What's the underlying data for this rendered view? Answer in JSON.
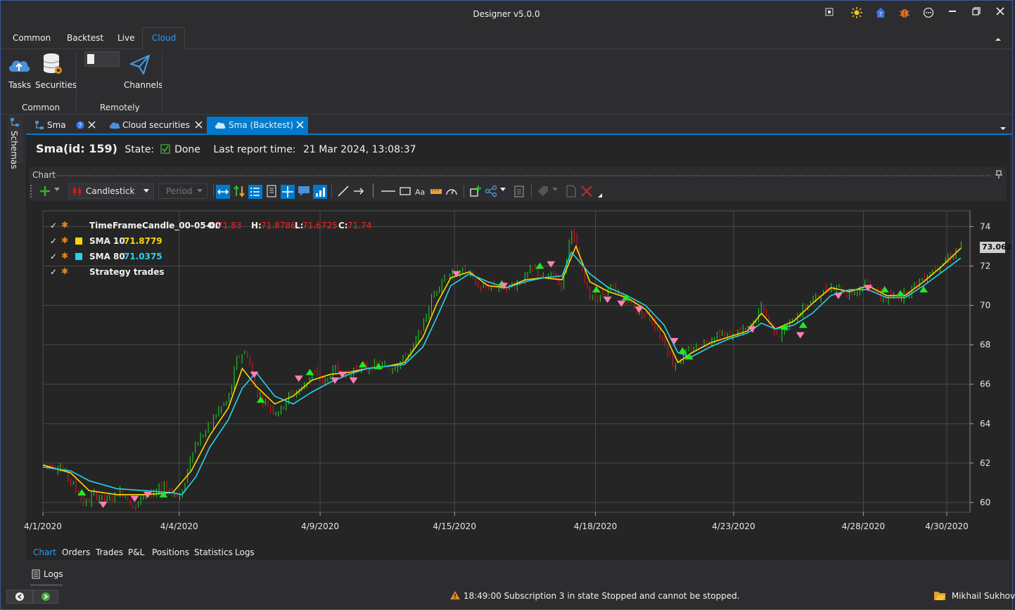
{
  "app": {
    "title": "Designer v5.0.0"
  },
  "colors": {
    "accent": "#007acc",
    "up": "#16e016",
    "down": "#e01616",
    "sma10": "#ffd700",
    "sma80": "#26d4e8",
    "buy": "#22e822",
    "sell": "#ff7fb8",
    "red_text": "#ff2020"
  },
  "ribbon": {
    "tabs": [
      "Common",
      "Backtest",
      "Live",
      "Cloud"
    ],
    "active_tab": "Cloud",
    "buttons": {
      "tasks": "Tasks",
      "securities": "Securities",
      "channels": "Channels"
    },
    "groups": {
      "common": "Common",
      "remotely": "Remotely"
    }
  },
  "sidebar": {
    "schemas": "Schemas"
  },
  "doc_tabs": {
    "sma": "Sma",
    "cloud_securities": "Cloud securities",
    "sma_backtest": "Sma (Backtest)"
  },
  "header": {
    "name": "Sma(id: 159)",
    "state_label": "State:",
    "state_value": "Done",
    "report_label": "Last report time:",
    "report_value": "21 Mar 2024, 13:08:37"
  },
  "chart_panel": {
    "title": "Chart",
    "candle_type": "Candlestick",
    "period_placeholder": "Period"
  },
  "legend": {
    "candle": {
      "name": "TimeFrameCandle_00-05-00",
      "o_label": "O:",
      "o": "71.83",
      "h_label": "H:",
      "h": "71.8786",
      "l_label": "L:",
      "l": "71.6725",
      "c_label": "C:",
      "c": "71.74"
    },
    "sma10": {
      "name": "SMA 10",
      "value": "71.8779"
    },
    "sma80": {
      "name": "SMA 80",
      "value": "71.0375"
    },
    "trades": {
      "name": "Strategy trades"
    }
  },
  "last_price_badge": "73.062",
  "bottom_tabs": [
    "Chart",
    "Orders",
    "Trades",
    "P&L",
    "Positions",
    "Statistics",
    "Logs"
  ],
  "logs_panel": {
    "label": "Logs"
  },
  "status": {
    "message": "18:49:00  Subscription 3 in state Stopped and cannot be stopped.",
    "user": "Mikhail Sukhov"
  },
  "chart_data": {
    "type": "line",
    "xlabel": "",
    "ylabel": "",
    "ylim": [
      59.5,
      74.8
    ],
    "yticks": [
      60,
      62,
      64,
      66,
      68,
      70,
      72,
      74
    ],
    "x_ticks": [
      "4/1/2020",
      "4/4/2020",
      "4/9/2020",
      "4/15/2020",
      "4/18/2020",
      "4/23/2020",
      "4/28/2020",
      "4/30/2020"
    ],
    "xlim": [
      0,
      100
    ],
    "x_tick_pos": [
      0,
      14.7,
      29.9,
      44.4,
      59.6,
      74.5,
      88.5,
      97.5
    ],
    "price": [
      [
        0,
        61.9
      ],
      [
        2,
        61.8
      ],
      [
        3.5,
        60.7
      ],
      [
        4.5,
        59.9
      ],
      [
        5.5,
        60.4
      ],
      [
        7,
        60.1
      ],
      [
        8.5,
        60.6
      ],
      [
        10,
        59.7
      ],
      [
        11,
        60.6
      ],
      [
        12,
        60.3
      ],
      [
        13,
        61.0
      ],
      [
        14,
        60.4
      ],
      [
        15,
        60.3
      ],
      [
        16,
        62.6
      ],
      [
        17.5,
        63.6
      ],
      [
        19,
        64.7
      ],
      [
        20,
        65.2
      ],
      [
        21,
        67.4
      ],
      [
        22,
        67.6
      ],
      [
        23,
        65.6
      ],
      [
        24.5,
        64.8
      ],
      [
        25.5,
        64.6
      ],
      [
        26.5,
        65.4
      ],
      [
        28,
        65.8
      ],
      [
        29,
        66.6
      ],
      [
        30.5,
        66.1
      ],
      [
        31.5,
        66.8
      ],
      [
        33,
        66.4
      ],
      [
        34,
        66.9
      ],
      [
        35,
        66.8
      ],
      [
        36,
        67.0
      ],
      [
        37.5,
        66.8
      ],
      [
        39,
        67.3
      ],
      [
        40,
        67.9
      ],
      [
        41,
        69.0
      ],
      [
        42,
        70.4
      ],
      [
        43,
        71.3
      ],
      [
        44,
        71.6
      ],
      [
        45,
        71.8
      ],
      [
        46,
        71.6
      ],
      [
        47,
        70.9
      ],
      [
        48.5,
        71.0
      ],
      [
        50,
        70.9
      ],
      [
        51.5,
        71.2
      ],
      [
        53,
        71.9
      ],
      [
        54,
        71.3
      ],
      [
        55,
        71.6
      ],
      [
        56,
        71.0
      ],
      [
        57,
        74.0
      ],
      [
        58,
        71.8
      ],
      [
        59,
        70.5
      ],
      [
        60,
        70.3
      ],
      [
        61,
        70.9
      ],
      [
        62,
        70.6
      ],
      [
        63,
        70.3
      ],
      [
        64,
        69.8
      ],
      [
        65.5,
        69.4
      ],
      [
        67,
        68.2
      ],
      [
        68,
        67.0
      ],
      [
        69,
        67.4
      ],
      [
        70.5,
        67.9
      ],
      [
        72,
        68.3
      ],
      [
        73,
        68.6
      ],
      [
        74,
        68.4
      ],
      [
        75.5,
        68.7
      ],
      [
        76.5,
        68.9
      ],
      [
        77.5,
        70.0
      ],
      [
        78.5,
        69.0
      ],
      [
        79.5,
        68.5
      ],
      [
        81,
        69.3
      ],
      [
        82.5,
        70.1
      ],
      [
        84,
        70.6
      ],
      [
        85.5,
        71.1
      ],
      [
        86.5,
        70.6
      ],
      [
        88,
        70.8
      ],
      [
        89,
        71.2
      ],
      [
        90.5,
        70.3
      ],
      [
        92,
        70.4
      ],
      [
        93,
        70.6
      ],
      [
        95,
        71.4
      ],
      [
        96.5,
        72.0
      ],
      [
        98,
        72.5
      ],
      [
        99,
        73.0
      ]
    ],
    "sma10": [
      [
        0,
        61.9
      ],
      [
        3,
        61.5
      ],
      [
        5,
        60.6
      ],
      [
        8,
        60.4
      ],
      [
        11,
        60.4
      ],
      [
        14,
        60.5
      ],
      [
        16,
        61.6
      ],
      [
        18,
        63.4
      ],
      [
        20,
        64.8
      ],
      [
        21.5,
        66.8
      ],
      [
        23,
        65.9
      ],
      [
        25,
        65.0
      ],
      [
        27,
        65.4
      ],
      [
        29,
        66.2
      ],
      [
        31,
        66.5
      ],
      [
        33,
        66.6
      ],
      [
        35,
        66.8
      ],
      [
        37,
        66.9
      ],
      [
        39,
        67.1
      ],
      [
        41,
        68.4
      ],
      [
        42.5,
        70.1
      ],
      [
        44,
        71.4
      ],
      [
        46,
        71.7
      ],
      [
        48,
        71.0
      ],
      [
        50,
        70.9
      ],
      [
        52,
        71.3
      ],
      [
        54,
        71.4
      ],
      [
        56,
        71.3
      ],
      [
        57.5,
        73.0
      ],
      [
        59,
        71.2
      ],
      [
        61,
        70.7
      ],
      [
        63,
        70.4
      ],
      [
        65,
        69.8
      ],
      [
        67,
        68.6
      ],
      [
        68.5,
        67.1
      ],
      [
        70,
        67.6
      ],
      [
        72,
        68.1
      ],
      [
        74,
        68.4
      ],
      [
        76,
        68.7
      ],
      [
        77.5,
        69.6
      ],
      [
        79,
        68.8
      ],
      [
        81,
        69.2
      ],
      [
        83,
        70.1
      ],
      [
        85,
        70.9
      ],
      [
        87,
        70.7
      ],
      [
        89,
        71.0
      ],
      [
        91,
        70.5
      ],
      [
        93,
        70.5
      ],
      [
        95,
        71.2
      ],
      [
        97,
        72.0
      ],
      [
        99,
        72.9
      ]
    ],
    "sma80": [
      [
        0,
        61.8
      ],
      [
        3,
        61.6
      ],
      [
        5,
        61.1
      ],
      [
        8,
        60.7
      ],
      [
        11,
        60.6
      ],
      [
        14,
        60.5
      ],
      [
        15,
        60.4
      ],
      [
        16.5,
        61.3
      ],
      [
        18,
        62.8
      ],
      [
        20,
        64.2
      ],
      [
        21.5,
        65.8
      ],
      [
        23,
        66.6
      ],
      [
        25,
        65.4
      ],
      [
        27,
        65.0
      ],
      [
        29,
        65.6
      ],
      [
        31,
        66.1
      ],
      [
        33,
        66.5
      ],
      [
        35,
        66.8
      ],
      [
        37,
        66.9
      ],
      [
        39,
        67.0
      ],
      [
        41,
        67.9
      ],
      [
        42.5,
        69.4
      ],
      [
        44,
        71.0
      ],
      [
        46,
        71.6
      ],
      [
        48,
        71.2
      ],
      [
        50,
        70.9
      ],
      [
        52,
        71.2
      ],
      [
        54,
        71.4
      ],
      [
        56,
        71.5
      ],
      [
        57,
        72.7
      ],
      [
        59,
        71.6
      ],
      [
        61,
        70.9
      ],
      [
        63,
        70.5
      ],
      [
        65,
        70.0
      ],
      [
        67,
        69.0
      ],
      [
        68.5,
        67.6
      ],
      [
        70,
        67.4
      ],
      [
        72,
        67.9
      ],
      [
        74,
        68.3
      ],
      [
        76,
        68.6
      ],
      [
        77.5,
        69.1
      ],
      [
        79,
        68.8
      ],
      [
        81,
        69.0
      ],
      [
        83,
        69.6
      ],
      [
        85,
        70.5
      ],
      [
        87,
        70.8
      ],
      [
        89,
        70.8
      ],
      [
        91,
        70.4
      ],
      [
        93,
        70.4
      ],
      [
        95,
        71.0
      ],
      [
        97,
        71.7
      ],
      [
        99,
        72.4
      ]
    ],
    "buys": [
      [
        4.2,
        60.5
      ],
      [
        13,
        60.4
      ],
      [
        23.5,
        65.2
      ],
      [
        28.8,
        66.6
      ],
      [
        34.5,
        67.0
      ],
      [
        36.2,
        66.9
      ],
      [
        49.5,
        71.1
      ],
      [
        53.6,
        72.0
      ],
      [
        59.7,
        70.8
      ],
      [
        62.9,
        70.4
      ],
      [
        69,
        67.7
      ],
      [
        69.7,
        67.4
      ],
      [
        80,
        68.9
      ],
      [
        82,
        69.0
      ],
      [
        90.8,
        70.8
      ],
      [
        92.5,
        70.6
      ],
      [
        95,
        70.8
      ]
    ],
    "sells": [
      [
        6.5,
        59.9
      ],
      [
        9.9,
        60.2
      ],
      [
        11.3,
        60.4
      ],
      [
        22.8,
        66.5
      ],
      [
        27.6,
        66.3
      ],
      [
        31.5,
        66.2
      ],
      [
        32.3,
        66.5
      ],
      [
        33.5,
        66.2
      ],
      [
        44.6,
        71.6
      ],
      [
        49.7,
        71.0
      ],
      [
        54.8,
        72.1
      ],
      [
        60.9,
        70.3
      ],
      [
        62.4,
        70.1
      ],
      [
        64.3,
        69.8
      ],
      [
        68.1,
        68.2
      ],
      [
        76.5,
        68.8
      ],
      [
        81.7,
        68.5
      ],
      [
        85.8,
        70.5
      ],
      [
        89,
        70.9
      ]
    ]
  }
}
